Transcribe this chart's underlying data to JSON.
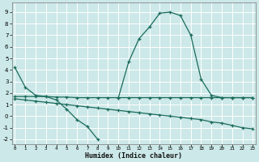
{
  "bg_color": "#cce8e8",
  "grid_color": "#ffffff",
  "line_color": "#1a6b5a",
  "marker": "+",
  "marker_size": 3.5,
  "line_width": 0.9,
  "series": [
    {
      "x": [
        10,
        11,
        12,
        13,
        14,
        15,
        16,
        17,
        18,
        19,
        20,
        21,
        22,
        23
      ],
      "y": [
        1.6,
        4.7,
        6.7,
        7.7,
        8.9,
        9.0,
        8.7,
        7.0,
        3.2,
        1.8,
        1.6,
        1.6,
        1.6,
        1.6
      ]
    },
    {
      "x": [
        0,
        1,
        2,
        3,
        4,
        5,
        6,
        7,
        8,
        9,
        10,
        11,
        12,
        13,
        14,
        15,
        16,
        17,
        18,
        19,
        20,
        21,
        22,
        23
      ],
      "y": [
        4.2,
        2.5,
        1.8,
        1.7,
        1.65,
        1.65,
        1.6,
        1.6,
        1.6,
        1.6,
        1.6,
        1.6,
        1.6,
        1.6,
        1.6,
        1.6,
        1.6,
        1.6,
        1.6,
        1.6,
        1.6,
        1.6,
        1.6,
        1.6
      ]
    },
    {
      "x": [
        0,
        1,
        2,
        3,
        4,
        5,
        6,
        7,
        8
      ],
      "y": [
        1.7,
        1.7,
        1.7,
        1.7,
        1.4,
        0.6,
        -0.3,
        -0.9,
        -2.0
      ]
    },
    {
      "x": [
        0,
        1,
        2,
        3,
        4,
        5,
        6,
        7,
        8,
        9,
        10,
        11,
        12,
        13,
        14,
        15,
        16,
        17,
        18,
        19,
        20,
        21,
        22,
        23
      ],
      "y": [
        1.5,
        1.4,
        1.3,
        1.2,
        1.1,
        1.0,
        0.9,
        0.8,
        0.7,
        0.6,
        0.5,
        0.4,
        0.3,
        0.2,
        0.1,
        0.0,
        -0.1,
        -0.2,
        -0.3,
        -0.5,
        -0.6,
        -0.8,
        -1.0,
        -1.1
      ]
    }
  ],
  "xlim": [
    -0.3,
    23.3
  ],
  "ylim": [
    -2.4,
    9.8
  ],
  "yticks": [
    -2,
    -1,
    0,
    1,
    2,
    3,
    4,
    5,
    6,
    7,
    8,
    9
  ],
  "xticks": [
    0,
    1,
    2,
    3,
    4,
    5,
    6,
    7,
    8,
    9,
    10,
    11,
    12,
    13,
    14,
    15,
    16,
    17,
    18,
    19,
    20,
    21,
    22,
    23
  ],
  "xtick_labels": [
    "0",
    "1",
    "2",
    "3",
    "4",
    "5",
    "6",
    "7",
    "8",
    "9",
    "10",
    "11",
    "12",
    "13",
    "14",
    "15",
    "16",
    "17",
    "18",
    "19",
    "20",
    "21",
    "22",
    "23"
  ],
  "xlabel": "Humidex (Indice chaleur)"
}
